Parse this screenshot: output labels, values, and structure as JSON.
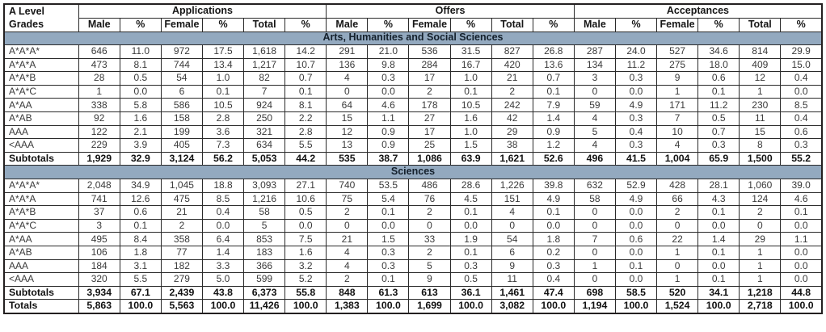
{
  "table": {
    "corner_title_line1": "A Level",
    "corner_title_line2": "Grades",
    "groups": [
      "Applications",
      "Offers",
      "Acceptances"
    ],
    "sub_columns": [
      "Male",
      "%",
      "Female",
      "%",
      "Total",
      "%"
    ],
    "sections": [
      {
        "title": "Arts, Humanities and Social Sciences",
        "rows": [
          [
            "A*A*A*",
            "646",
            "11.0",
            "972",
            "17.5",
            "1,618",
            "14.2",
            "291",
            "21.0",
            "536",
            "31.5",
            "827",
            "26.8",
            "287",
            "24.0",
            "527",
            "34.6",
            "814",
            "29.9"
          ],
          [
            "A*A*A",
            "473",
            "8.1",
            "744",
            "13.4",
            "1,217",
            "10.7",
            "136",
            "9.8",
            "284",
            "16.7",
            "420",
            "13.6",
            "134",
            "11.2",
            "275",
            "18.0",
            "409",
            "15.0"
          ],
          [
            "A*A*B",
            "28",
            "0.5",
            "54",
            "1.0",
            "82",
            "0.7",
            "4",
            "0.3",
            "17",
            "1.0",
            "21",
            "0.7",
            "3",
            "0.3",
            "9",
            "0.6",
            "12",
            "0.4"
          ],
          [
            "A*A*C",
            "1",
            "0.0",
            "6",
            "0.1",
            "7",
            "0.1",
            "0",
            "0.0",
            "2",
            "0.1",
            "2",
            "0.1",
            "0",
            "0.0",
            "1",
            "0.1",
            "1",
            "0.0"
          ],
          [
            "A*AA",
            "338",
            "5.8",
            "586",
            "10.5",
            "924",
            "8.1",
            "64",
            "4.6",
            "178",
            "10.5",
            "242",
            "7.9",
            "59",
            "4.9",
            "171",
            "11.2",
            "230",
            "8.5"
          ],
          [
            "A*AB",
            "92",
            "1.6",
            "158",
            "2.8",
            "250",
            "2.2",
            "15",
            "1.1",
            "27",
            "1.6",
            "42",
            "1.4",
            "4",
            "0.3",
            "7",
            "0.5",
            "11",
            "0.4"
          ],
          [
            "AAA",
            "122",
            "2.1",
            "199",
            "3.6",
            "321",
            "2.8",
            "12",
            "0.9",
            "17",
            "1.0",
            "29",
            "0.9",
            "5",
            "0.4",
            "10",
            "0.7",
            "15",
            "0.6"
          ],
          [
            "<AAA",
            "229",
            "3.9",
            "405",
            "7.3",
            "634",
            "5.5",
            "13",
            "0.9",
            "25",
            "1.5",
            "38",
            "1.2",
            "4",
            "0.3",
            "4",
            "0.3",
            "8",
            "0.3"
          ]
        ],
        "subtotals": [
          "Subtotals",
          "1,929",
          "32.9",
          "3,124",
          "56.2",
          "5,053",
          "44.2",
          "535",
          "38.7",
          "1,086",
          "63.9",
          "1,621",
          "52.6",
          "496",
          "41.5",
          "1,004",
          "65.9",
          "1,500",
          "55.2"
        ]
      },
      {
        "title": "Sciences",
        "rows": [
          [
            "A*A*A*",
            "2,048",
            "34.9",
            "1,045",
            "18.8",
            "3,093",
            "27.1",
            "740",
            "53.5",
            "486",
            "28.6",
            "1,226",
            "39.8",
            "632",
            "52.9",
            "428",
            "28.1",
            "1,060",
            "39.0"
          ],
          [
            "A*A*A",
            "741",
            "12.6",
            "475",
            "8.5",
            "1,216",
            "10.6",
            "75",
            "5.4",
            "76",
            "4.5",
            "151",
            "4.9",
            "58",
            "4.9",
            "66",
            "4.3",
            "124",
            "4.6"
          ],
          [
            "A*A*B",
            "37",
            "0.6",
            "21",
            "0.4",
            "58",
            "0.5",
            "2",
            "0.1",
            "2",
            "0.1",
            "4",
            "0.1",
            "0",
            "0.0",
            "2",
            "0.1",
            "2",
            "0.1"
          ],
          [
            "A*A*C",
            "3",
            "0.1",
            "2",
            "0.0",
            "5",
            "0.0",
            "0",
            "0.0",
            "0",
            "0.0",
            "0",
            "0.0",
            "0",
            "0.0",
            "0",
            "0.0",
            "0",
            "0.0"
          ],
          [
            "A*AA",
            "495",
            "8.4",
            "358",
            "6.4",
            "853",
            "7.5",
            "21",
            "1.5",
            "33",
            "1.9",
            "54",
            "1.8",
            "7",
            "0.6",
            "22",
            "1.4",
            "29",
            "1.1"
          ],
          [
            "A*AB",
            "106",
            "1.8",
            "77",
            "1.4",
            "183",
            "1.6",
            "4",
            "0.3",
            "2",
            "0.1",
            "6",
            "0.2",
            "0",
            "0.0",
            "1",
            "0.1",
            "1",
            "0.0"
          ],
          [
            "AAA",
            "184",
            "3.1",
            "182",
            "3.3",
            "366",
            "3.2",
            "4",
            "0.3",
            "5",
            "0.3",
            "9",
            "0.3",
            "1",
            "0.1",
            "0",
            "0.0",
            "1",
            "0.0"
          ],
          [
            "<AAA",
            "320",
            "5.5",
            "279",
            "5.0",
            "599",
            "5.2",
            "2",
            "0.1",
            "9",
            "0.5",
            "11",
            "0.4",
            "0",
            "0.0",
            "1",
            "0.1",
            "1",
            "0.0"
          ]
        ],
        "subtotals": [
          "Subtotals",
          "3,934",
          "67.1",
          "2,439",
          "43.8",
          "6,373",
          "55.8",
          "848",
          "61.3",
          "613",
          "36.1",
          "1,461",
          "47.4",
          "698",
          "58.5",
          "520",
          "34.1",
          "1,218",
          "44.8"
        ]
      }
    ],
    "totals": [
      "Totals",
      "5,863",
      "100.0",
      "5,563",
      "100.0",
      "11,426",
      "100.0",
      "1,383",
      "100.0",
      "1,699",
      "100.0",
      "3,082",
      "100.0",
      "1,194",
      "100.0",
      "1,524",
      "100.0",
      "2,718",
      "100.0"
    ]
  },
  "colors": {
    "section_band": "#93a9bf",
    "grid_border": "#231f20",
    "header_text": "#161616",
    "data_text": "#3a3a3a"
  }
}
